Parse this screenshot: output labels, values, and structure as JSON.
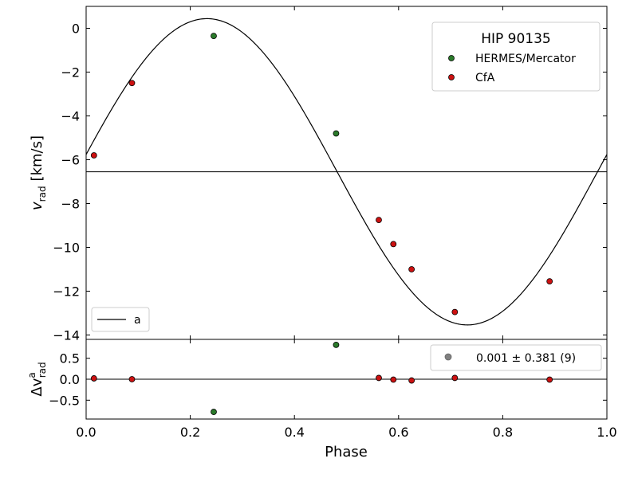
{
  "chart_data": [
    {
      "type": "scatter",
      "panel": "main",
      "title": "",
      "xlabel": "",
      "ylabel_main": "v",
      "ylabel_sub": "rad",
      "ylabel_unit": "[km/s]",
      "xlim": [
        0.0,
        1.0
      ],
      "ylim": [
        -14.2,
        1.0
      ],
      "yticks": [
        0,
        -2,
        -4,
        -6,
        -8,
        -10,
        -12,
        -14
      ],
      "ytick_labels": [
        "0",
        "−2",
        "−4",
        "−6",
        "−8",
        "−10",
        "−12",
        "−14"
      ],
      "grid": false,
      "legend": {
        "placement": "top-right",
        "title": "HIP 90135",
        "entries": [
          {
            "label": "HERMES/Mercator",
            "color": "#2a7a2a"
          },
          {
            "label": "CfA",
            "color": "#cc1111"
          }
        ]
      },
      "fit_legend": {
        "placement": "bottom-left",
        "label": "a"
      },
      "systemic_velocity": -6.55,
      "orbit_curve": {
        "amplitude": 6.99,
        "phase_of_max": 0.232
      },
      "series": [
        {
          "name": "HERMES/Mercator",
          "color": "#2a7a2a",
          "points": [
            [
              0.245,
              -0.35
            ],
            [
              0.48,
              -4.8
            ]
          ]
        },
        {
          "name": "CfA",
          "color": "#cc1111",
          "points": [
            [
              0.015,
              -5.8
            ],
            [
              0.088,
              -2.5
            ],
            [
              0.562,
              -8.75
            ],
            [
              0.59,
              -9.85
            ],
            [
              0.625,
              -11.0
            ],
            [
              0.708,
              -12.95
            ],
            [
              0.89,
              -11.55
            ]
          ]
        }
      ]
    },
    {
      "type": "scatter",
      "panel": "residuals",
      "xlabel": "Phase",
      "ylabel_main": "Δv",
      "ylabel_sup": "a",
      "ylabel_sub": "rad",
      "xlim": [
        0.0,
        1.0
      ],
      "ylim": [
        -0.95,
        0.95
      ],
      "xticks": [
        0.0,
        0.2,
        0.4,
        0.6,
        0.8,
        1.0
      ],
      "xtick_labels": [
        "0.0",
        "0.2",
        "0.4",
        "0.6",
        "0.8",
        "1.0"
      ],
      "yticks": [
        0.5,
        0.0,
        -0.5
      ],
      "ytick_labels": [
        "0.5",
        "0.0",
        "−0.5"
      ],
      "legend": {
        "placement": "top-right",
        "label": "0.001 ± 0.381 (9)",
        "marker_color": "#808080"
      },
      "series": [
        {
          "name": "HERMES/Mercator",
          "color": "#2a7a2a",
          "points": [
            [
              0.245,
              -0.78
            ],
            [
              0.48,
              0.82
            ]
          ]
        },
        {
          "name": "CfA",
          "color": "#cc1111",
          "points": [
            [
              0.015,
              0.02
            ],
            [
              0.088,
              0.0
            ],
            [
              0.562,
              0.03
            ],
            [
              0.59,
              -0.01
            ],
            [
              0.625,
              -0.03
            ],
            [
              0.708,
              0.03
            ],
            [
              0.89,
              -0.01
            ]
          ]
        }
      ]
    }
  ]
}
